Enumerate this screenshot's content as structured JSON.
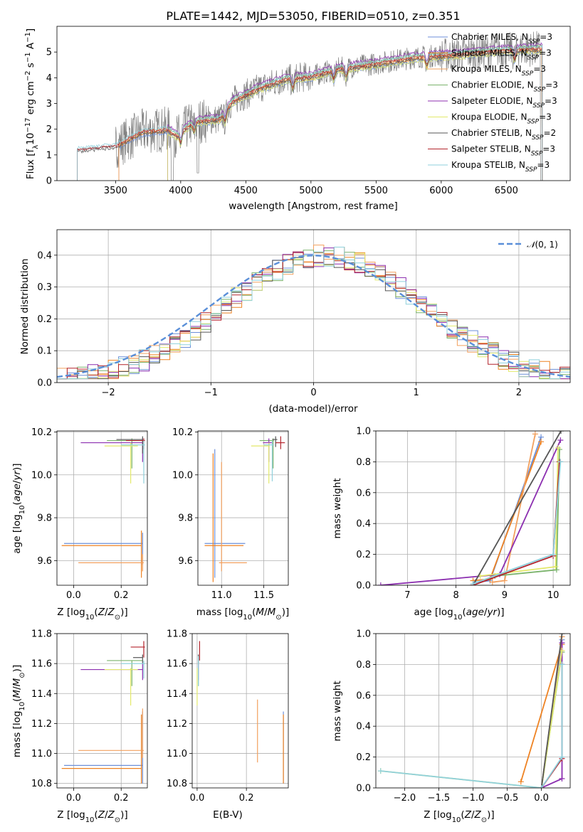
{
  "figure_title": "PLATE=1442, MJD=53050, FIBERID=0510, z=0.351",
  "colors": [
    "#6c8fd8",
    "#ee8222",
    "#f2a05e",
    "#7ab36b",
    "#8c2fb0",
    "#e3e96a",
    "#555555",
    "#b3242c",
    "#8fd0dc"
  ],
  "chart_data": [
    {
      "id": "spectrum",
      "type": "line",
      "xlabel": "wavelength [Angstrom, rest frame]",
      "ylabel": "Flux [f$_\\lambda$10$^{-17}$ erg cm$^{-2}$ s$^{-1}$ A$^{-1}$]",
      "ylabel_parts": {
        "pre": "Flux [f",
        "sub1": "λ",
        "mid": "10",
        "sup1": "−17",
        "mid2": " erg cm",
        "sup2": "−2",
        "mid3": " s",
        "sup3": "−1",
        "mid4": " A",
        "sup4": "−1",
        "post": "]"
      },
      "xlim": [
        3050,
        6990
      ],
      "ylim": [
        0,
        6
      ],
      "xticks": [
        3500,
        4000,
        4500,
        5000,
        5500,
        6000,
        6500
      ],
      "yticks": [
        0,
        1,
        2,
        3,
        4,
        5
      ],
      "legend": [
        "Chabrier MILES, N$_{SSP}$=3",
        "Salpeter MILES, N$_{SSP}$=3",
        "Kroupa MILES, N$_{SSP}$=3",
        "Chabrier ELODIE, N$_{SSP}$=3",
        "Salpeter ELODIE, N$_{SSP}$=3",
        "Kroupa ELODIE, N$_{SSP}$=3",
        "Chabrier STELIB, N$_{SSP}$=2",
        "Salpeter STELIB, N$_{SSP}$=3",
        "Kroupa STELIB, N$_{SSP}$=3"
      ],
      "legend_display": [
        {
          "pre": "Chabrier MILES, N",
          "sub": "SSP",
          "post": "=3"
        },
        {
          "pre": "Salpeter MILES, N",
          "sub": "SSP",
          "post": "=3"
        },
        {
          "pre": "Kroupa MILES, N",
          "sub": "SSP",
          "post": "=3"
        },
        {
          "pre": "Chabrier ELODIE, N",
          "sub": "SSP",
          "post": "=3"
        },
        {
          "pre": "Salpeter ELODIE, N",
          "sub": "SSP",
          "post": "=3"
        },
        {
          "pre": "Kroupa ELODIE, N",
          "sub": "SSP",
          "post": "=3"
        },
        {
          "pre": "Chabrier STELIB, N",
          "sub": "SSP",
          "post": "=2"
        },
        {
          "pre": "Salpeter STELIB, N",
          "sub": "SSP",
          "post": "=3"
        },
        {
          "pre": "Kroupa STELIB, N",
          "sub": "SSP",
          "post": "=3"
        }
      ],
      "legend_position": "upper right",
      "model_ranges": {
        "MILES": [
          3525,
          6775
        ],
        "ELODIE": [
          3900,
          6775
        ],
        "STELIB": [
          3205,
          6775
        ]
      },
      "data_range": [
        3205,
        6780
      ],
      "continuum": [
        [
          3205,
          1.2
        ],
        [
          3500,
          1.35
        ],
        [
          3700,
          1.9
        ],
        [
          3900,
          2.0
        ],
        [
          3970,
          1.75
        ],
        [
          4100,
          2.3
        ],
        [
          4300,
          2.4
        ],
        [
          4400,
          3.1
        ],
        [
          4600,
          3.6
        ],
        [
          4800,
          3.95
        ],
        [
          5000,
          4.05
        ],
        [
          5200,
          4.35
        ],
        [
          5500,
          4.55
        ],
        [
          5800,
          4.8
        ],
        [
          6100,
          4.9
        ],
        [
          6400,
          5.05
        ],
        [
          6600,
          5.1
        ],
        [
          6780,
          5.15
        ]
      ]
    },
    {
      "id": "residuals",
      "type": "histogram",
      "xlabel": "(data-model)/error",
      "ylabel": "Normed distribution",
      "xlim": [
        -2.5,
        2.5
      ],
      "ylim": [
        0,
        0.48
      ],
      "xticks": [
        -2,
        -1,
        0,
        1,
        2
      ],
      "xtick_labels": [
        "−2",
        "−1",
        "0",
        "1",
        "2"
      ],
      "yticks": [
        0.0,
        0.1,
        0.2,
        0.3,
        0.4
      ],
      "yticklabels": [
        "0.0",
        "0.1",
        "0.2",
        "0.3",
        "0.4"
      ],
      "grid": true,
      "bin_width": 0.1,
      "legend_label": "N(0,1)",
      "legend_display": {
        "glyph": "𝒩",
        "post": "(0, 1)"
      },
      "legend_position": "upper right"
    },
    {
      "id": "age-vs-Z",
      "type": "errorbar",
      "xlabel": "Z [log$_{10}$(Z/Z$_\\odot$)]",
      "ylabel": "age [log$_{10}$(age/yr)]",
      "xlim": [
        -0.07,
        0.31
      ],
      "ylim": [
        9.485,
        10.205
      ],
      "xticks": [
        0.0,
        0.2
      ],
      "xticklabels": [
        "0.0",
        "0.2"
      ],
      "yticks": [
        9.6,
        9.8,
        10.0,
        10.2
      ],
      "yticklabels": [
        "9.6",
        "9.8",
        "10.0",
        "10.2"
      ],
      "grid": true,
      "points": [
        {
          "x": 0.29,
          "y": 9.68,
          "xl": -0.04,
          "xh": 0.29,
          "yl": 9.58,
          "yh": 9.73
        },
        {
          "x": 0.285,
          "y": 9.67,
          "xl": -0.05,
          "xh": 0.285,
          "yl": 9.52,
          "yh": 9.74
        },
        {
          "x": 0.29,
          "y": 9.59,
          "xl": 0.02,
          "xh": 0.295,
          "yl": 9.55,
          "yh": 9.63
        },
        {
          "x": 0.245,
          "y": 10.16,
          "xl": 0.14,
          "xh": 0.29,
          "yl": 10.03,
          "yh": 10.17
        },
        {
          "x": 0.29,
          "y": 10.15,
          "xl": 0.03,
          "xh": 0.29,
          "yl": 10.06,
          "yh": 10.17
        },
        {
          "x": 0.24,
          "y": 10.135,
          "xl": 0.13,
          "xh": 0.27,
          "yl": 9.96,
          "yh": 10.15
        },
        {
          "x": 0.29,
          "y": 10.165,
          "xl": 0.18,
          "xh": 0.29,
          "yl": 10.1,
          "yh": 10.18
        },
        {
          "x": 0.295,
          "y": 10.16,
          "xl": 0.22,
          "xh": 0.3,
          "yl": 10.12,
          "yh": 10.17
        },
        {
          "x": 0.295,
          "y": 10.14,
          "xl": 0.2,
          "xh": 0.3,
          "yl": 9.96,
          "yh": 10.16
        }
      ]
    },
    {
      "id": "age-vs-mass",
      "type": "errorbar",
      "xlabel": "mass [log$_{10}$(M/M$_\\odot$)]",
      "ylabel": "",
      "xlim": [
        10.72,
        11.79
      ],
      "ylim": [
        9.485,
        10.205
      ],
      "xticks": [
        11.0,
        11.5
      ],
      "xticklabels": [
        "11.0",
        "11.5"
      ],
      "yticks": [
        9.6,
        9.8,
        10.0,
        10.2
      ],
      "yticklabels": [
        "9.6",
        "9.8",
        "10.0",
        "10.2"
      ],
      "grid": true,
      "points": [
        {
          "x": 10.92,
          "y": 9.68,
          "xl": 10.8,
          "xh": 11.28,
          "yl": 9.52,
          "yh": 10.12
        },
        {
          "x": 10.9,
          "y": 9.67,
          "xl": 10.8,
          "xh": 11.26,
          "yl": 9.5,
          "yh": 10.1
        },
        {
          "x": 11.0,
          "y": 9.59,
          "xl": 10.97,
          "xh": 11.3,
          "yl": 9.55,
          "yh": 10.06
        },
        {
          "x": 11.61,
          "y": 10.16,
          "xl": 11.45,
          "xh": 11.62,
          "yl": 10.03,
          "yh": 10.17
        },
        {
          "x": 11.56,
          "y": 10.15,
          "xl": 11.49,
          "xh": 11.6,
          "yl": 10.06,
          "yh": 10.17
        },
        {
          "x": 11.56,
          "y": 10.135,
          "xl": 11.35,
          "xh": 11.57,
          "yl": 9.96,
          "yh": 10.15
        },
        {
          "x": 11.64,
          "y": 10.165,
          "xl": 11.6,
          "xh": 11.66,
          "yl": 10.13,
          "yh": 10.18
        },
        {
          "x": 11.7,
          "y": 10.15,
          "xl": 11.64,
          "xh": 11.75,
          "yl": 10.12,
          "yh": 10.18
        },
        {
          "x": 11.6,
          "y": 10.14,
          "xl": 11.5,
          "xh": 11.62,
          "yl": 9.97,
          "yh": 10.16
        }
      ]
    },
    {
      "id": "massweight-vs-age",
      "type": "line",
      "xlabel": "age [log$_{10}$(age/yr)]",
      "ylabel": "mass weight",
      "xlim": [
        6.35,
        10.35
      ],
      "ylim": [
        0,
        1
      ],
      "xticks": [
        7,
        8,
        9,
        10
      ],
      "xticklabels": [
        "7",
        "8",
        "9",
        "10"
      ],
      "yticks": [
        0.0,
        0.2,
        0.4,
        0.6,
        0.8,
        1.0
      ],
      "yticklabels": [
        "0.0",
        "0.2",
        "0.4",
        "0.6",
        "0.8",
        "1.0"
      ],
      "grid": true,
      "series": [
        {
          "points": [
            [
              8.4,
              0.02
            ],
            [
              8.7,
              0.03
            ],
            [
              9.75,
              0.96
            ]
          ]
        },
        {
          "points": [
            [
              8.35,
              0.03
            ],
            [
              8.7,
              0.04
            ],
            [
              9.75,
              0.93
            ]
          ]
        },
        {
          "points": [
            [
              8.75,
              0.02
            ],
            [
              9.0,
              0.03
            ],
            [
              9.63,
              0.98
            ]
          ]
        },
        {
          "points": [
            [
              8.8,
              0.06
            ],
            [
              10.07,
              0.1
            ],
            [
              10.13,
              0.88
            ]
          ]
        },
        {
          "points": [
            [
              6.45,
              0.0
            ],
            [
              8.9,
              0.07
            ],
            [
              10.15,
              0.94
            ]
          ]
        },
        {
          "points": [
            [
              8.5,
              0.06
            ],
            [
              10.05,
              0.12
            ],
            [
              10.1,
              0.89
            ]
          ]
        },
        {
          "points": [
            [
              8.35,
              0.0
            ],
            [
              10.16,
              1.0
            ]
          ]
        },
        {
          "points": [
            [
              8.35,
              0.0
            ],
            [
              10.0,
              0.19
            ],
            [
              10.13,
              0.8
            ]
          ]
        },
        {
          "points": [
            [
              8.35,
              0.01
            ],
            [
              10.0,
              0.2
            ],
            [
              10.15,
              0.8
            ]
          ]
        }
      ]
    },
    {
      "id": "mass-vs-Z",
      "type": "errorbar",
      "xlabel": "Z [log$_{10}$(Z/Z$_\\odot$)]",
      "ylabel": "mass [log$_{10}$(M/M$_\\odot$)]",
      "xlim": [
        -0.07,
        0.31
      ],
      "ylim": [
        10.77,
        11.8
      ],
      "xticks": [
        0.0,
        0.2
      ],
      "xticklabels": [
        "0.0",
        "0.2"
      ],
      "yticks": [
        10.8,
        11.0,
        11.2,
        11.4,
        11.6,
        11.8
      ],
      "yticklabels": [
        "10.8",
        "11.0",
        "11.2",
        "11.4",
        "11.6",
        "11.8"
      ],
      "grid": true,
      "points": [
        {
          "x": 0.29,
          "y": 10.92,
          "xl": -0.04,
          "xh": 0.29,
          "yl": 10.8,
          "yh": 11.28
        },
        {
          "x": 0.285,
          "y": 10.9,
          "xl": -0.05,
          "xh": 0.285,
          "yl": 10.8,
          "yh": 11.26
        },
        {
          "x": 0.29,
          "y": 11.02,
          "xl": 0.02,
          "xh": 0.295,
          "yl": 10.97,
          "yh": 11.3
        },
        {
          "x": 0.245,
          "y": 11.62,
          "xl": 0.14,
          "xh": 0.29,
          "yl": 11.45,
          "yh": 11.62
        },
        {
          "x": 0.29,
          "y": 11.56,
          "xl": 0.03,
          "xh": 0.29,
          "yl": 11.49,
          "yh": 11.6
        },
        {
          "x": 0.24,
          "y": 11.56,
          "xl": 0.13,
          "xh": 0.27,
          "yl": 11.32,
          "yh": 11.57
        },
        {
          "x": 0.29,
          "y": 11.64,
          "xl": 0.25,
          "xh": 0.29,
          "yl": 11.6,
          "yh": 11.66
        },
        {
          "x": 0.295,
          "y": 11.71,
          "xl": 0.24,
          "xh": 0.3,
          "yl": 11.64,
          "yh": 11.75
        },
        {
          "x": 0.295,
          "y": 11.6,
          "xl": 0.2,
          "xh": 0.3,
          "yl": 11.5,
          "yh": 11.62
        }
      ]
    },
    {
      "id": "mass-vs-ebv",
      "type": "errorbar",
      "xlabel": "E(B-V)",
      "ylabel": "",
      "xlim": [
        -0.02,
        0.37
      ],
      "ylim": [
        10.77,
        11.8
      ],
      "xticks": [
        0.0,
        0.2
      ],
      "xticklabels": [
        "0.0",
        "0.2"
      ],
      "yticks": [
        10.8,
        11.0,
        11.2,
        11.4,
        11.6,
        11.8
      ],
      "yticklabels": [
        "10.8",
        "11.0",
        "11.2",
        "11.4",
        "11.6",
        "11.8"
      ],
      "grid": true,
      "points": [
        {
          "x": 0.35,
          "y": 11.0,
          "xl": 0.35,
          "xh": 0.35,
          "yl": 10.8,
          "yh": 11.28
        },
        {
          "x": 0.35,
          "y": 11.0,
          "xl": 0.35,
          "xh": 0.35,
          "yl": 10.8,
          "yh": 11.26
        },
        {
          "x": 0.245,
          "y": 11.1,
          "xl": 0.245,
          "xh": 0.245,
          "yl": 10.94,
          "yh": 11.36
        },
        {
          "x": 0.005,
          "y": 11.55,
          "xl": 0.005,
          "xh": 0.005,
          "yl": 11.45,
          "yh": 11.62
        },
        {
          "x": 0.005,
          "y": 11.55,
          "xl": 0.005,
          "xh": 0.005,
          "yl": 11.49,
          "yh": 11.6
        },
        {
          "x": 0.0,
          "y": 11.45,
          "xl": 0.0,
          "xh": 0.0,
          "yl": 11.32,
          "yh": 11.57
        },
        {
          "x": 0.005,
          "y": 11.63,
          "xl": 0.005,
          "xh": 0.005,
          "yl": 11.6,
          "yh": 11.66
        },
        {
          "x": 0.01,
          "y": 11.7,
          "xl": 0.01,
          "xh": 0.01,
          "yl": 11.62,
          "yh": 11.75
        },
        {
          "x": 0.005,
          "y": 11.55,
          "xl": 0.005,
          "xh": 0.005,
          "yl": 11.45,
          "yh": 11.65
        }
      ]
    },
    {
      "id": "massweight-vs-Z",
      "type": "line",
      "xlabel": "Z [log$_{10}$(Z/Z$_\\odot$)]",
      "ylabel": "mass weight",
      "xlim": [
        -2.42,
        0.42
      ],
      "ylim": [
        0,
        1
      ],
      "xticks": [
        -2.0,
        -1.5,
        -1.0,
        -0.5,
        0.0
      ],
      "xticklabels": [
        "−2.0",
        "−1.5",
        "−1.0",
        "−0.5",
        "0.0"
      ],
      "yticks": [
        0.0,
        0.2,
        0.4,
        0.6,
        0.8,
        1.0
      ],
      "yticklabels": [
        "0.0",
        "0.2",
        "0.4",
        "0.6",
        "0.8",
        "1.0"
      ],
      "grid": true,
      "series": [
        {
          "points": [
            [
              0.0,
              0.0
            ],
            [
              0.3,
              0.96
            ]
          ]
        },
        {
          "points": [
            [
              -0.3,
              0.04
            ],
            [
              0.3,
              0.93
            ]
          ]
        },
        {
          "points": [
            [
              0.0,
              0.0
            ],
            [
              0.3,
              0.98
            ]
          ]
        },
        {
          "points": [
            [
              0.0,
              0.0
            ],
            [
              0.3,
              0.88
            ]
          ]
        },
        {
          "points": [
            [
              0.0,
              0.0
            ],
            [
              0.3,
              0.06
            ],
            [
              0.3,
              0.94
            ]
          ]
        },
        {
          "points": [
            [
              -2.35,
              0.11
            ],
            [
              0.0,
              0.0
            ],
            [
              0.3,
              0.89
            ]
          ]
        },
        {
          "points": [
            [
              0.0,
              0.0
            ],
            [
              0.3,
              1.0
            ]
          ]
        },
        {
          "points": [
            [
              0.0,
              0.0
            ],
            [
              0.3,
              0.19
            ],
            [
              0.3,
              0.8
            ]
          ]
        },
        {
          "points": [
            [
              -2.35,
              0.11
            ],
            [
              0.0,
              0.0
            ],
            [
              0.3,
              0.2
            ],
            [
              0.3,
              0.8
            ]
          ]
        }
      ]
    }
  ]
}
